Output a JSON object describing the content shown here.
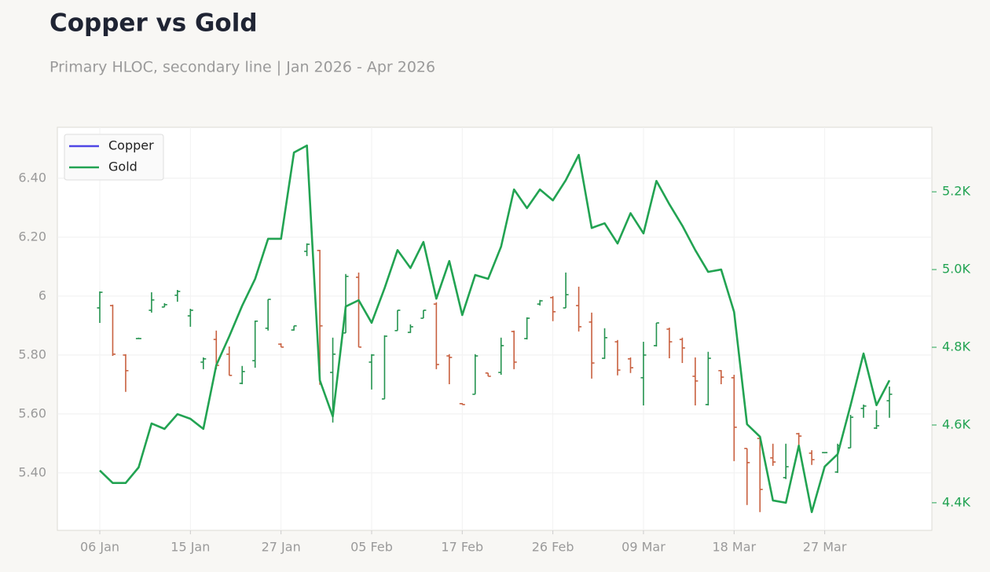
{
  "chart_data": {
    "type": "hloc",
    "title": "Copper vs Gold",
    "subtitle": "Primary HLOC, secondary line | Jan 2026 - Apr 2026",
    "categories": [
      "06 Jan",
      null,
      null,
      null,
      null,
      null,
      null,
      "15 Jan",
      null,
      null,
      null,
      null,
      null,
      null,
      "27 Jan",
      null,
      null,
      null,
      null,
      null,
      null,
      "05 Feb",
      null,
      null,
      null,
      null,
      null,
      null,
      "17 Feb",
      null,
      null,
      null,
      null,
      null,
      null,
      "26 Feb",
      null,
      null,
      null,
      null,
      null,
      null,
      "09 Mar",
      null,
      null,
      null,
      null,
      null,
      null,
      "18 Mar",
      null,
      null,
      null,
      null,
      null,
      null,
      "27 Mar",
      null,
      null,
      null,
      null,
      null
    ],
    "series": [
      {
        "name": "Copper",
        "type": "hloc",
        "color": "#4f46e5",
        "up_color": "#24934f",
        "down_color": "#c8603f",
        "open": [
          5.96,
          5.968,
          5.8,
          5.856,
          5.952,
          5.963,
          6.003,
          5.933,
          5.776,
          5.853,
          5.803,
          5.704,
          5.781,
          5.891,
          5.837,
          5.885,
          6.152,
          6.155,
          5.741,
          5.875,
          6.064,
          5.776,
          5.651,
          5.883,
          5.877,
          5.925,
          5.973,
          5.797,
          5.635,
          5.667,
          5.739,
          5.741,
          5.88,
          5.856,
          5.973,
          5.995,
          5.96,
          5.968,
          5.912,
          5.789,
          5.845,
          5.787,
          5.723,
          5.832,
          5.888,
          5.853,
          5.728,
          5.632,
          5.747,
          5.723,
          5.483,
          5.517,
          5.451,
          5.384,
          5.533,
          5.467,
          5.469,
          5.403,
          5.485,
          5.619,
          5.552,
          5.645
        ],
        "high": [
          6.016,
          5.971,
          5.803,
          5.859,
          6.013,
          5.976,
          6.021,
          5.957,
          5.792,
          5.883,
          5.829,
          5.763,
          5.917,
          5.989,
          5.84,
          5.899,
          6.179,
          6.157,
          5.859,
          6.075,
          6.08,
          5.803,
          5.867,
          5.952,
          5.904,
          5.952,
          5.979,
          5.803,
          5.637,
          5.803,
          5.739,
          5.859,
          5.883,
          5.928,
          5.987,
          6.0,
          6.08,
          6.032,
          5.944,
          5.891,
          5.851,
          5.792,
          5.845,
          5.909,
          5.893,
          5.859,
          5.792,
          5.811,
          5.749,
          5.733,
          5.483,
          5.517,
          5.499,
          5.499,
          5.536,
          5.477,
          5.469,
          5.499,
          5.597,
          5.632,
          5.613,
          5.693
        ],
        "low": [
          5.909,
          5.797,
          5.675,
          5.855,
          5.944,
          5.963,
          5.981,
          5.896,
          5.752,
          5.752,
          5.731,
          5.701,
          5.757,
          5.883,
          5.827,
          5.883,
          6.136,
          5.699,
          5.571,
          5.875,
          5.827,
          5.683,
          5.651,
          5.883,
          5.875,
          5.925,
          5.752,
          5.701,
          5.632,
          5.667,
          5.728,
          5.733,
          5.752,
          5.853,
          5.968,
          5.915,
          5.96,
          5.88,
          5.72,
          5.787,
          5.731,
          5.739,
          5.629,
          5.829,
          5.789,
          5.773,
          5.629,
          5.629,
          5.701,
          5.44,
          5.291,
          5.267,
          5.424,
          5.379,
          5.483,
          5.427,
          5.467,
          5.4,
          5.485,
          5.587,
          5.549,
          5.587
        ],
        "close": [
          6.013,
          5.803,
          5.747,
          5.856,
          5.987,
          5.971,
          6.016,
          5.952,
          5.787,
          5.765,
          5.731,
          5.744,
          5.915,
          5.989,
          5.827,
          5.899,
          6.176,
          5.899,
          5.803,
          6.067,
          5.827,
          5.8,
          5.864,
          5.952,
          5.896,
          5.952,
          5.768,
          5.792,
          5.632,
          5.797,
          5.728,
          5.832,
          5.776,
          5.925,
          5.984,
          5.947,
          6.005,
          5.896,
          5.773,
          5.859,
          5.749,
          5.757,
          5.8,
          5.909,
          5.845,
          5.824,
          5.712,
          5.789,
          5.725,
          5.555,
          5.435,
          5.344,
          5.437,
          5.421,
          5.525,
          5.445,
          5.469,
          5.493,
          5.589,
          5.627,
          5.56,
          5.667
        ]
      },
      {
        "name": "Gold",
        "type": "line",
        "axis": "y2",
        "color": "#22a352",
        "values": [
          4483,
          4451,
          4451,
          4491,
          4604,
          4590,
          4628,
          4616,
          4590,
          4754,
          4828,
          4907,
          4976,
          5079,
          5079,
          5301,
          5319,
          4715,
          4622,
          4905,
          4921,
          4863,
          4952,
          5050,
          5004,
          5071,
          4925,
          5022,
          4883,
          4986,
          4976,
          5059,
          5206,
          5158,
          5206,
          5178,
          5230,
          5295,
          5107,
          5119,
          5067,
          5145,
          5093,
          5228,
          5168,
          5113,
          5050,
          4994,
          5000,
          4891,
          4602,
          4570,
          4406,
          4400,
          4547,
          4376,
          4493,
          4525,
          4651,
          4784,
          4651,
          4715
        ]
      }
    ],
    "ylim": [
      5.205,
      6.573
    ],
    "yticks": [
      {
        "value": 5.4,
        "label": "5.40"
      },
      {
        "value": 5.6,
        "label": "5.60"
      },
      {
        "value": 5.8,
        "label": "5.80"
      },
      6,
      {
        "value": 6.2,
        "label": "6.20"
      },
      {
        "value": 6.4,
        "label": "6.40"
      }
    ],
    "y2lim": [
      4329,
      5366
    ],
    "y2ticks": [
      {
        "value": 4400,
        "label": "4.4K"
      },
      {
        "value": 4600,
        "label": "4.6K"
      },
      {
        "value": 4800,
        "label": "4.8K"
      },
      {
        "value": 5000,
        "label": "5.0K"
      },
      {
        "value": 5200,
        "label": "5.2K"
      }
    ],
    "grid": true,
    "legend": "upper left"
  }
}
